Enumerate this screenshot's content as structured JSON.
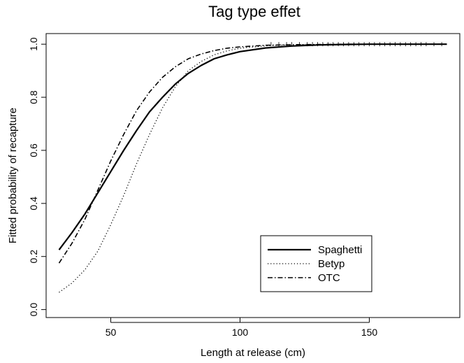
{
  "chart_data": {
    "type": "line",
    "title": "Tag type effet",
    "xlabel": "Length at release (cm)",
    "ylabel": "Fitted probability of recapture",
    "xlim": [
      25,
      185
    ],
    "ylim": [
      -0.03,
      1.04
    ],
    "x_ticks": [
      {
        "value": 50,
        "label": "50"
      },
      {
        "value": 100,
        "label": "100"
      },
      {
        "value": 150,
        "label": "150"
      }
    ],
    "y_ticks": [
      {
        "value": 0.0,
        "label": "0.0"
      },
      {
        "value": 0.2,
        "label": "0.2"
      },
      {
        "value": 0.4,
        "label": "0.4"
      },
      {
        "value": 0.6,
        "label": "0.6"
      },
      {
        "value": 0.8,
        "label": "0.8"
      },
      {
        "value": 1.0,
        "label": "1.0"
      }
    ],
    "legend_position": "bottom-right",
    "x": [
      30,
      35,
      40,
      45,
      50,
      55,
      60,
      65,
      70,
      75,
      80,
      85,
      90,
      95,
      100,
      110,
      120,
      130,
      140,
      150,
      160,
      170,
      180
    ],
    "series": [
      {
        "name": "Spaghetti",
        "style": "solid",
        "values": [
          0.225,
          0.29,
          0.36,
          0.44,
          0.52,
          0.6,
          0.675,
          0.745,
          0.8,
          0.85,
          0.89,
          0.92,
          0.945,
          0.96,
          0.972,
          0.986,
          0.993,
          0.997,
          0.999,
          1.0,
          1.0,
          1.0,
          1.0
        ]
      },
      {
        "name": "Betyp",
        "style": "dotted",
        "values": [
          0.065,
          0.1,
          0.15,
          0.22,
          0.32,
          0.43,
          0.55,
          0.66,
          0.76,
          0.84,
          0.9,
          0.935,
          0.96,
          0.975,
          0.985,
          0.994,
          0.998,
          0.999,
          1.0,
          1.0,
          1.0,
          1.0,
          1.0
        ]
      },
      {
        "name": "OTC",
        "style": "dashdot",
        "values": [
          0.175,
          0.25,
          0.34,
          0.45,
          0.56,
          0.66,
          0.75,
          0.82,
          0.875,
          0.915,
          0.945,
          0.963,
          0.976,
          0.985,
          0.99,
          0.996,
          0.998,
          0.999,
          1.0,
          1.0,
          1.0,
          1.0,
          1.0
        ]
      }
    ],
    "rug_x": [
      112,
      115,
      118,
      120,
      123,
      126,
      128,
      130,
      132,
      134,
      136,
      138,
      140,
      142,
      144,
      146,
      148,
      150,
      152,
      154,
      156,
      158,
      160,
      162,
      164,
      166,
      168,
      170,
      172,
      175,
      178
    ]
  }
}
